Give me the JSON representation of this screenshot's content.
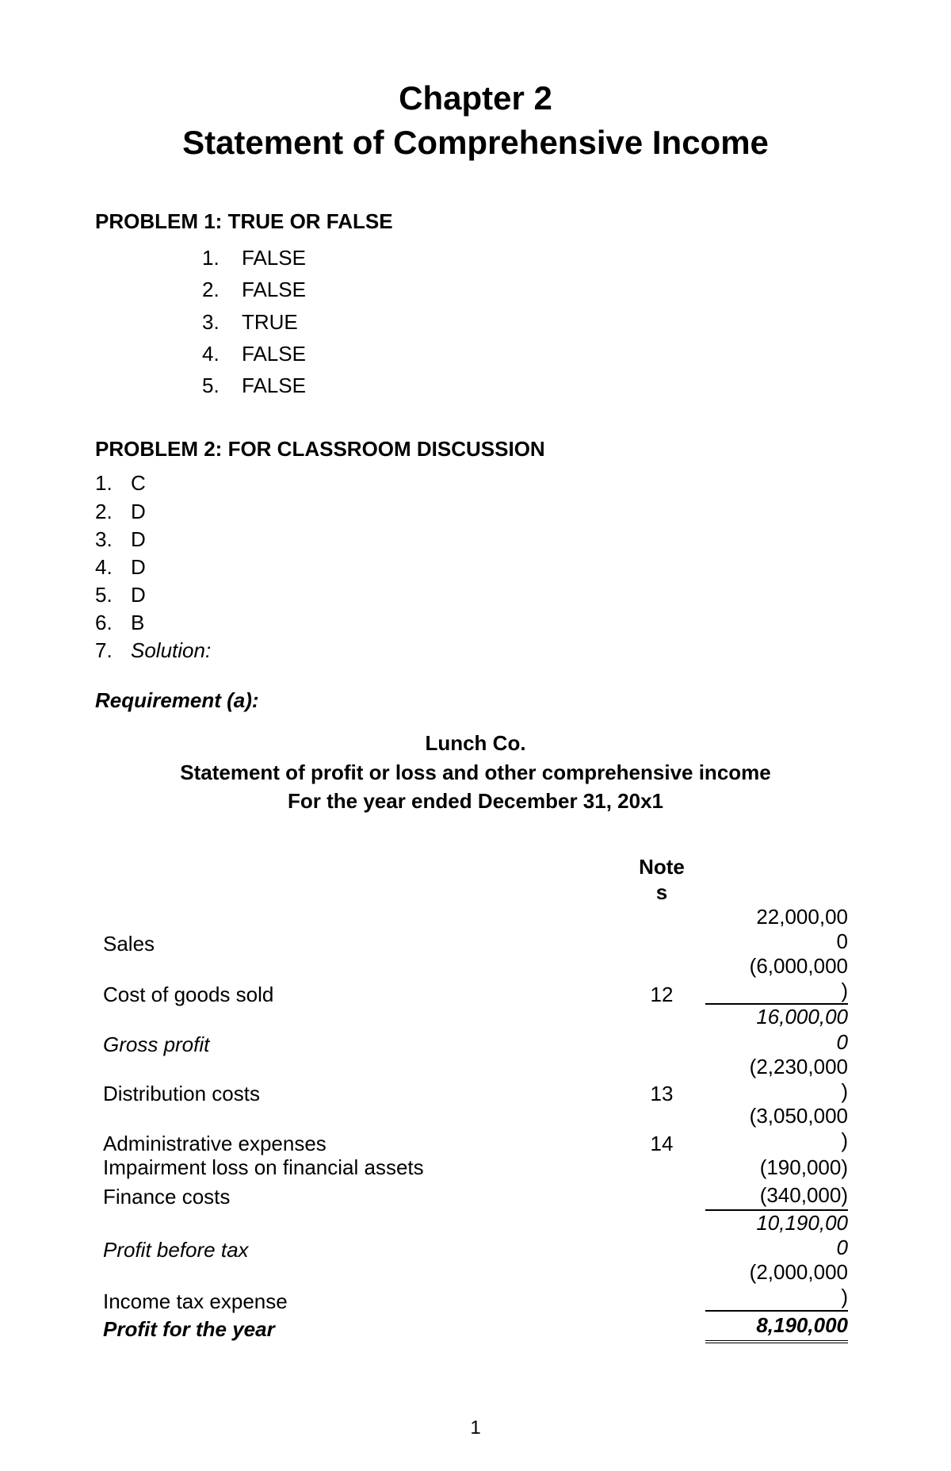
{
  "chapter": {
    "title": "Chapter 2",
    "subtitle": "Statement of Comprehensive Income"
  },
  "problem1": {
    "heading": "PROBLEM 1: TRUE OR FALSE",
    "items": [
      {
        "num": "1.",
        "answer": "FALSE"
      },
      {
        "num": "2.",
        "answer": "FALSE"
      },
      {
        "num": "3.",
        "answer": "TRUE"
      },
      {
        "num": "4.",
        "answer": "FALSE"
      },
      {
        "num": "5.",
        "answer": "FALSE"
      }
    ]
  },
  "problem2": {
    "heading": "PROBLEM 2: FOR CLASSROOM DISCUSSION",
    "items": [
      {
        "num": "1.",
        "answer": "C"
      },
      {
        "num": "2.",
        "answer": "D"
      },
      {
        "num": "3.",
        "answer": "D"
      },
      {
        "num": "4.",
        "answer": "D"
      },
      {
        "num": "5.",
        "answer": "D"
      },
      {
        "num": "6.",
        "answer": "B"
      },
      {
        "num": "7.",
        "answer": "Solution:"
      }
    ]
  },
  "requirement": {
    "heading": "Requirement (a):",
    "company": "Lunch Co.",
    "statement_title": "Statement of profit or loss and other comprehensive income",
    "period": "For the year ended December 31, 20x1"
  },
  "table": {
    "notes_header_line1": "Note",
    "notes_header_line2": "s",
    "rows": {
      "sales": {
        "label": "Sales",
        "note": "",
        "amount_line1": "22,000,00",
        "amount_line2": "0"
      },
      "cogs": {
        "label": "Cost of goods sold",
        "note": "12",
        "amount_line1": "(6,000,000",
        "amount_line2": ")"
      },
      "gross_profit": {
        "label": "Gross profit",
        "note": "",
        "amount_line1": "16,000,00",
        "amount_line2": "0"
      },
      "distribution": {
        "label": "Distribution costs",
        "note": "13",
        "amount_line1": "(2,230,000",
        "amount_line2": ")"
      },
      "admin": {
        "label": "Administrative expenses",
        "note": "14",
        "amount_line1": "(3,050,000",
        "amount_line2": ")"
      },
      "impairment": {
        "label": "Impairment loss on financial assets",
        "note": "",
        "amount": "(190,000)"
      },
      "finance": {
        "label": "Finance costs",
        "note": "",
        "amount": "(340,000)"
      },
      "profit_before_tax": {
        "label": "Profit before tax",
        "note": "",
        "amount_line1": "10,190,00",
        "amount_line2": "0"
      },
      "tax": {
        "label": "Income tax expense",
        "note": "",
        "amount_line1": "(2,000,000",
        "amount_line2": ")"
      },
      "profit_year": {
        "label": "Profit for the year",
        "note": "",
        "amount": "8,190,000"
      }
    }
  },
  "page_number": "1"
}
